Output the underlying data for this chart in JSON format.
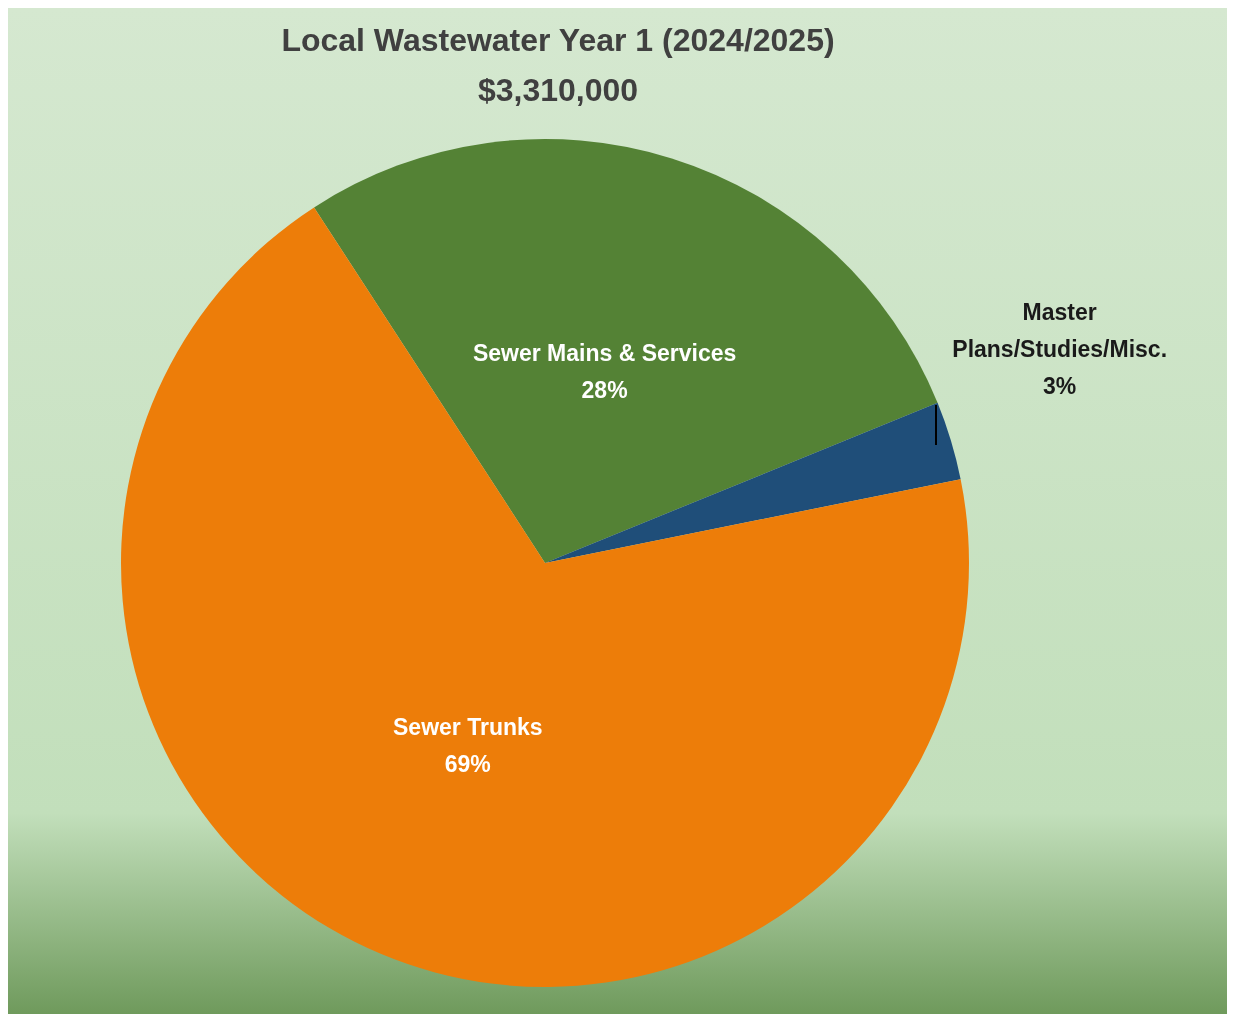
{
  "chart_data": {
    "type": "pie",
    "title": "Local Wastewater Year 1 (2024/2025)",
    "subtitle": "$3,310,000",
    "categories": [
      "Sewer Mains & Services",
      "Master Plans/Studies/Misc.",
      "Sewer Trunks"
    ],
    "values": [
      28,
      3,
      69
    ],
    "colors": [
      "#548235",
      "#1f4e79",
      "#ed7d09"
    ],
    "value_labels": [
      "28%",
      "3%",
      "69%"
    ],
    "legend": false
  }
}
